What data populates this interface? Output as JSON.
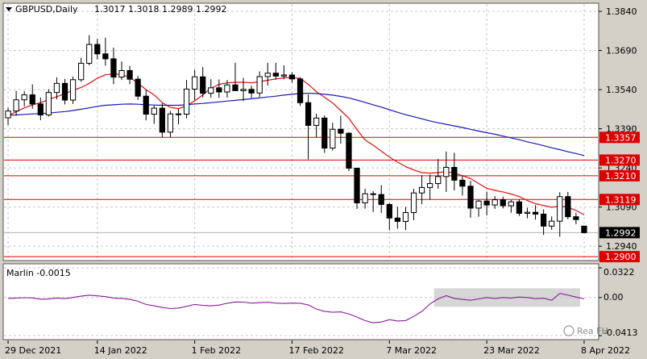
{
  "header": {
    "symbol": "GBPUSD,Daily",
    "ohlc": "1.3017 1.3018 1.2989 1.2992"
  },
  "oscillator": {
    "label": "Marlin -0.0015",
    "scale": [
      "0.0322",
      "0.00",
      "-0.0413"
    ]
  },
  "watermark": "Rea FH",
  "colors": {
    "background": "#ffffff",
    "frame": "#d4d0c8",
    "candle": "#000000",
    "ma_fast": "#dd1111",
    "ma_slow": "#1a1ab8",
    "level_line": "#dd0000",
    "oscillator_line": "#8b1a9a",
    "highlight_box": "#c8c8c8"
  },
  "chart_data": [
    {
      "type": "candlestick",
      "title": "GBPUSD,Daily",
      "x_labels": [
        "29 Dec 2021",
        "14 Jan 2022",
        "1 Feb 2022",
        "17 Feb 2022",
        "7 Mar 2022",
        "23 Mar 2022",
        "8 Apr 2022"
      ],
      "y_ticks": [
        1.384,
        1.369,
        1.354,
        1.339,
        1.324,
        1.309,
        1.294
      ],
      "ylim": [
        1.2888,
        1.3868
      ],
      "levels": [
        {
          "value": 1.3357,
          "label": "1.3357"
        },
        {
          "value": 1.327,
          "label": "1.3270"
        },
        {
          "value": 1.321,
          "label": "1.3210"
        },
        {
          "value": 1.3119,
          "label": "1.3119"
        },
        {
          "value": 1.29,
          "label": "1.2900"
        }
      ],
      "current_price": {
        "value": 1.2992,
        "label": "1.2992"
      },
      "candles": [
        [
          1.3432,
          1.3471,
          1.3404,
          1.3458
        ],
        [
          1.3458,
          1.3535,
          1.344,
          1.3501
        ],
        [
          1.3501,
          1.3534,
          1.3476,
          1.352
        ],
        [
          1.352,
          1.356,
          1.3467,
          1.3485
        ],
        [
          1.3485,
          1.351,
          1.3423,
          1.3443
        ],
        [
          1.3443,
          1.3541,
          1.3437,
          1.3529
        ],
        [
          1.3529,
          1.3587,
          1.3503,
          1.3564
        ],
        [
          1.3564,
          1.3581,
          1.3483,
          1.35
        ],
        [
          1.35,
          1.359,
          1.3485,
          1.3578
        ],
        [
          1.3578,
          1.3662,
          1.357,
          1.3641
        ],
        [
          1.3641,
          1.3749,
          1.3633,
          1.3713
        ],
        [
          1.3713,
          1.3734,
          1.3656,
          1.3677
        ],
        [
          1.3677,
          1.3739,
          1.3632,
          1.3658
        ],
        [
          1.3658,
          1.3701,
          1.3561,
          1.3588
        ],
        [
          1.3588,
          1.3648,
          1.3577,
          1.3613
        ],
        [
          1.3613,
          1.3631,
          1.3561,
          1.358
        ],
        [
          1.358,
          1.3592,
          1.3501,
          1.3515
        ],
        [
          1.3515,
          1.3538,
          1.3422,
          1.3446
        ],
        [
          1.3446,
          1.3479,
          1.3409,
          1.3469
        ],
        [
          1.3469,
          1.3488,
          1.3357,
          1.3377
        ],
        [
          1.3377,
          1.3458,
          1.3358,
          1.3447
        ],
        [
          1.3447,
          1.3466,
          1.3407,
          1.3446
        ],
        [
          1.3446,
          1.3577,
          1.343,
          1.3542
        ],
        [
          1.3542,
          1.3616,
          1.35,
          1.3589
        ],
        [
          1.3589,
          1.3627,
          1.351,
          1.3526
        ],
        [
          1.3526,
          1.358,
          1.3509,
          1.3547
        ],
        [
          1.3547,
          1.3579,
          1.3509,
          1.3531
        ],
        [
          1.3531,
          1.3577,
          1.3509,
          1.3558
        ],
        [
          1.3558,
          1.3643,
          1.354,
          1.3536
        ],
        [
          1.3536,
          1.3585,
          1.3496,
          1.3541
        ],
        [
          1.3541,
          1.3555,
          1.3508,
          1.3527
        ],
        [
          1.3527,
          1.361,
          1.3512,
          1.359
        ],
        [
          1.359,
          1.3643,
          1.3556,
          1.3603
        ],
        [
          1.3603,
          1.3643,
          1.3578,
          1.3592
        ],
        [
          1.3592,
          1.3633,
          1.358,
          1.3596
        ],
        [
          1.3596,
          1.3606,
          1.3567,
          1.3581
        ],
        [
          1.3581,
          1.3588,
          1.3478,
          1.349
        ],
        [
          1.349,
          1.3521,
          1.3273,
          1.3403
        ],
        [
          1.3403,
          1.3448,
          1.3357,
          1.3431
        ],
        [
          1.3431,
          1.3441,
          1.3298,
          1.3316
        ],
        [
          1.3316,
          1.3413,
          1.3307,
          1.3388
        ],
        [
          1.3388,
          1.344,
          1.3333,
          1.3373
        ],
        [
          1.3373,
          1.3377,
          1.3228,
          1.3239
        ],
        [
          1.3239,
          1.324,
          1.3083,
          1.3106
        ],
        [
          1.3106,
          1.316,
          1.3084,
          1.3141
        ],
        [
          1.3141,
          1.3151,
          1.3071,
          1.3138
        ],
        [
          1.3138,
          1.3174,
          1.3068,
          1.31
        ],
        [
          1.31,
          1.3106,
          1.3001,
          1.3048
        ],
        [
          1.3048,
          1.3091,
          1.3007,
          1.3035
        ],
        [
          1.3035,
          1.309,
          1.3002,
          1.3069
        ],
        [
          1.3069,
          1.316,
          1.304,
          1.3144
        ],
        [
          1.3144,
          1.3212,
          1.3101,
          1.3165
        ],
        [
          1.3165,
          1.3214,
          1.3118,
          1.318
        ],
        [
          1.318,
          1.3274,
          1.316,
          1.3207
        ],
        [
          1.3207,
          1.3303,
          1.3148,
          1.3242
        ],
        [
          1.3242,
          1.3298,
          1.3154,
          1.3193
        ],
        [
          1.3193,
          1.3212,
          1.3134,
          1.317
        ],
        [
          1.317,
          1.3191,
          1.3049,
          1.3086
        ],
        [
          1.3086,
          1.3118,
          1.3053,
          1.3113
        ],
        [
          1.3113,
          1.3149,
          1.3058,
          1.3098
        ],
        [
          1.3098,
          1.3132,
          1.3083,
          1.3118
        ],
        [
          1.3118,
          1.313,
          1.3085,
          1.3095
        ],
        [
          1.3095,
          1.3117,
          1.3068,
          1.311
        ],
        [
          1.311,
          1.312,
          1.3056,
          1.3066
        ],
        [
          1.3066,
          1.3087,
          1.3047,
          1.307
        ],
        [
          1.307,
          1.3097,
          1.3042,
          1.3063
        ],
        [
          1.3063,
          1.3081,
          1.2983,
          1.3017
        ],
        [
          1.3017,
          1.3054,
          1.3003,
          1.3036
        ],
        [
          1.3036,
          1.3147,
          1.2976,
          1.313
        ],
        [
          1.313,
          1.3148,
          1.3043,
          1.3053
        ],
        [
          1.3053,
          1.3068,
          1.3024,
          1.3042
        ],
        [
          1.3017,
          1.3018,
          1.2989,
          1.2992
        ]
      ],
      "series": [
        {
          "values": [
            1.344,
            1.3455,
            1.347,
            1.3482,
            1.349,
            1.3502,
            1.3513,
            1.3524,
            1.3538,
            1.3548,
            1.3564,
            1.3584,
            1.3597,
            1.36,
            1.3598,
            1.3587,
            1.3565,
            1.354,
            1.352,
            1.349,
            1.3472,
            1.3467,
            1.3478,
            1.3497,
            1.352,
            1.3545,
            1.356,
            1.3566,
            1.3568,
            1.3568,
            1.3566,
            1.3571,
            1.3576,
            1.3581,
            1.3585,
            1.3586,
            1.3583,
            1.356,
            1.3532,
            1.3511,
            1.3489,
            1.346,
            1.343,
            1.3387,
            1.3347,
            1.3327,
            1.3304,
            1.3282,
            1.3262,
            1.3245,
            1.3232,
            1.3222,
            1.322,
            1.3222,
            1.3226,
            1.322,
            1.321,
            1.3199,
            1.318,
            1.3162,
            1.3154,
            1.3148,
            1.314,
            1.313,
            1.3115,
            1.3103,
            1.3096,
            1.3089,
            1.3094,
            1.3089,
            1.3077,
            1.306
          ]
        },
        {
          "values": [
            1.3442,
            1.3443,
            1.3445,
            1.3447,
            1.3448,
            1.345,
            1.3453,
            1.3456,
            1.346,
            1.3465,
            1.347,
            1.3476,
            1.348,
            1.3482,
            1.3484,
            1.3485,
            1.3484,
            1.3482,
            1.3481,
            1.348,
            1.348,
            1.348,
            1.3482,
            1.3485,
            1.3487,
            1.349,
            1.3493,
            1.3496,
            1.3499,
            1.3502,
            1.3505,
            1.3508,
            1.3512,
            1.3515,
            1.3519,
            1.3522,
            1.3525,
            1.3526,
            1.3525,
            1.3522,
            1.3519,
            1.3514,
            1.3508,
            1.35,
            1.3491,
            1.3482,
            1.3473,
            1.3463,
            1.3453,
            1.3444,
            1.3436,
            1.3428,
            1.342,
            1.3413,
            1.3407,
            1.3401,
            1.3395,
            1.3388,
            1.3381,
            1.3375,
            1.3369,
            1.3362,
            1.3355,
            1.3348,
            1.334,
            1.3333,
            1.3325,
            1.3317,
            1.331,
            1.3302,
            1.3295,
            1.3287
          ]
        }
      ]
    },
    {
      "type": "line",
      "title": "Marlin -0.0015",
      "ylim": [
        -0.0413,
        0.0322
      ],
      "highlight_range": [
        53,
        70
      ],
      "series": [
        {
          "values": [
            -0.001,
            -0.0005,
            -0.0002,
            -0.0004,
            -0.0018,
            -0.0016,
            -0.0005,
            -0.0012,
            0.0001,
            0.0015,
            0.0025,
            0.0018,
            0.001,
            -0.0005,
            -0.001,
            -0.002,
            -0.004,
            -0.0075,
            -0.009,
            -0.0108,
            -0.012,
            -0.0115,
            -0.0095,
            -0.0075,
            -0.0085,
            -0.009,
            -0.0082,
            -0.0062,
            -0.0048,
            -0.005,
            -0.006,
            -0.0056,
            -0.0052,
            -0.006,
            -0.0065,
            -0.006,
            -0.0062,
            -0.008,
            -0.0125,
            -0.015,
            -0.016,
            -0.0156,
            -0.0178,
            -0.0212,
            -0.025,
            -0.0275,
            -0.0265,
            -0.024,
            -0.0255,
            -0.025,
            -0.0205,
            -0.015,
            -0.007,
            -0.0015,
            0.002,
            -0.001,
            -0.002,
            -0.003,
            -0.0015,
            0.0,
            -0.001,
            0.0,
            -0.0005,
            0.0005,
            0.0,
            -0.0012,
            -0.0008,
            -0.003,
            0.0045,
            0.0025,
            0.0005,
            -0.0015
          ]
        }
      ]
    }
  ]
}
